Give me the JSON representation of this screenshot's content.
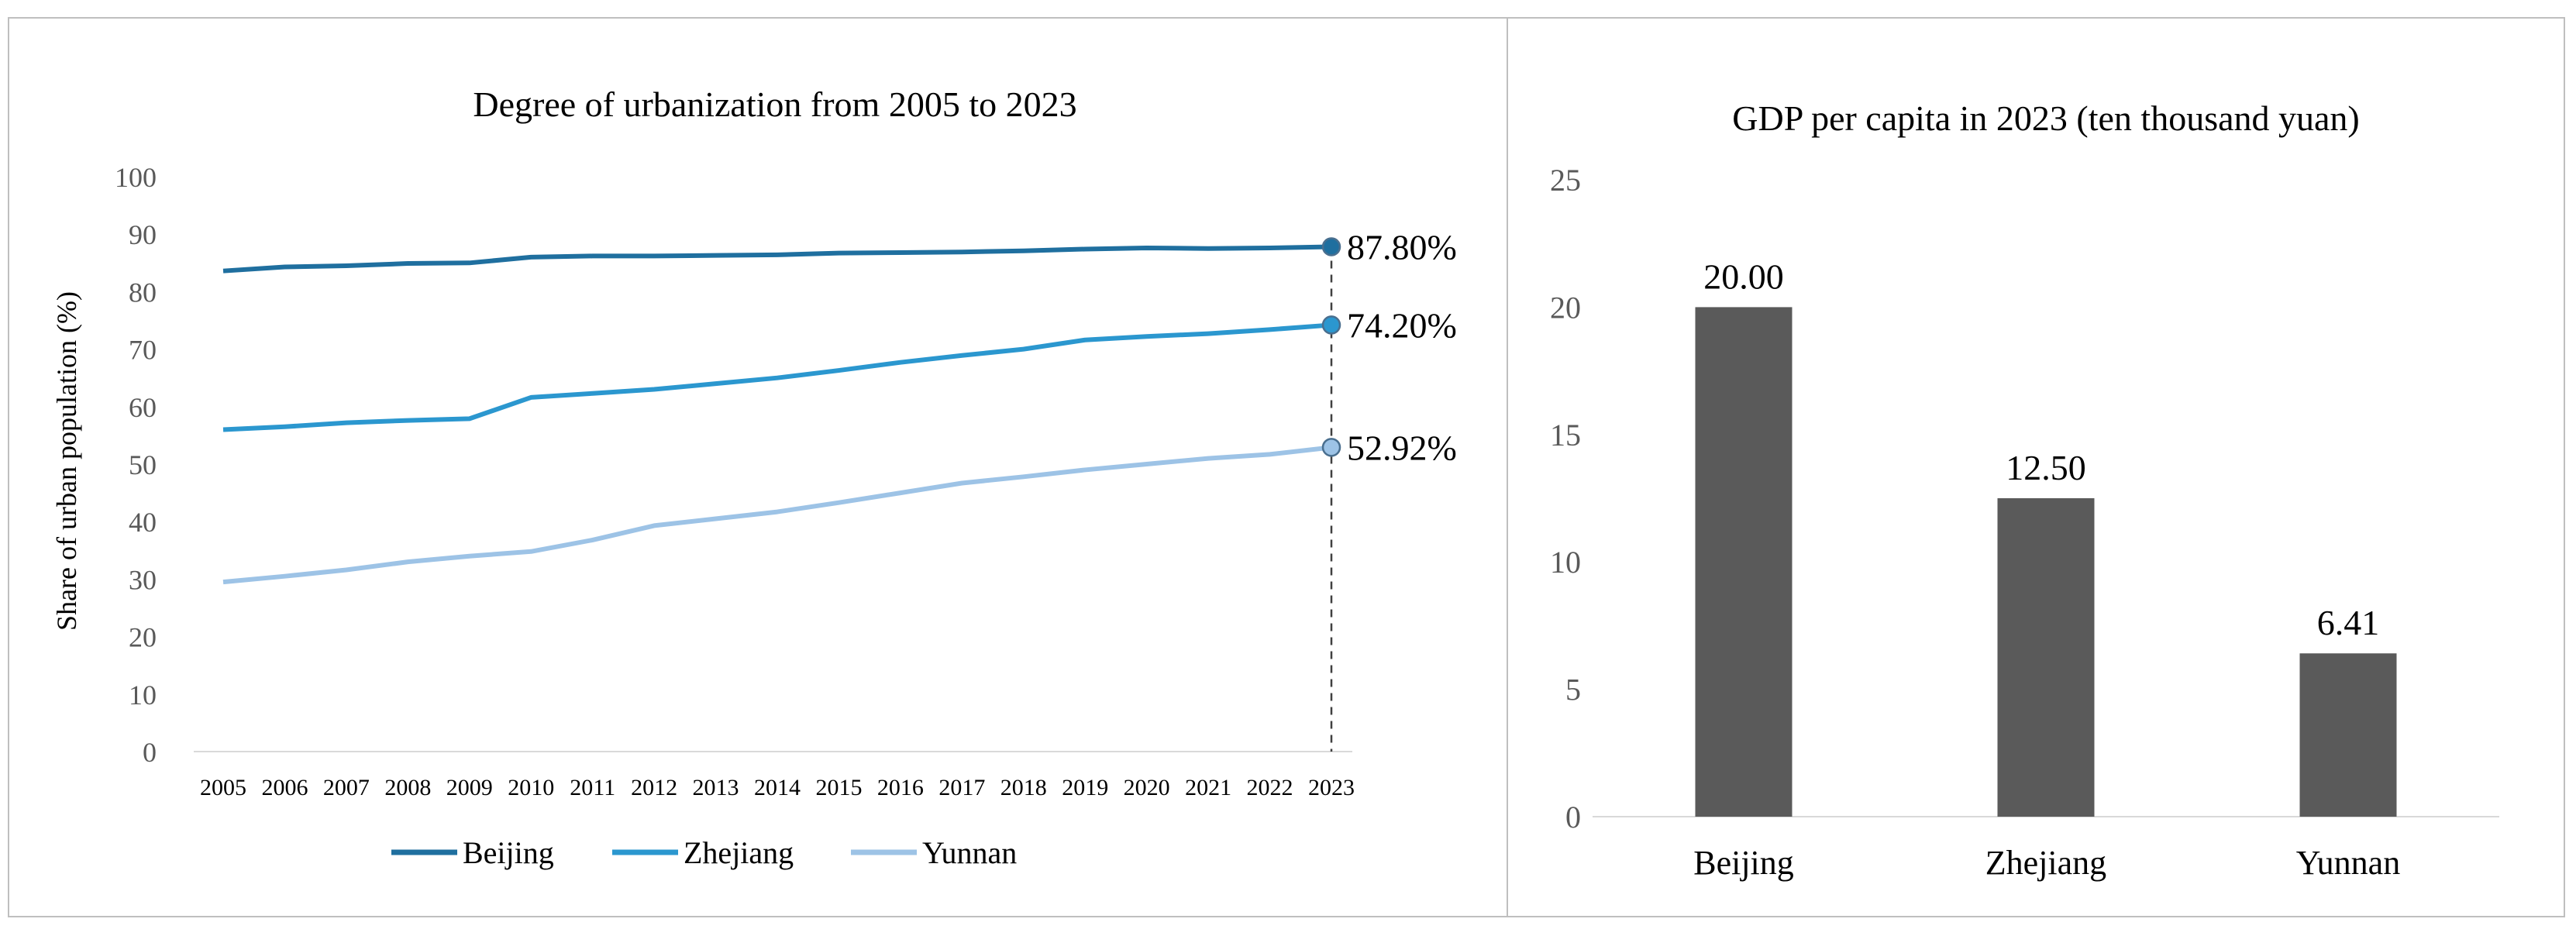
{
  "chart_data": [
    {
      "type": "line",
      "title": "Degree of urbanization from 2005 to 2023",
      "xlabel": "",
      "ylabel": "Share of urban population (%)",
      "ylim": [
        0,
        100
      ],
      "yticks": [
        0,
        10,
        20,
        30,
        40,
        50,
        60,
        70,
        80,
        90,
        100
      ],
      "x": [
        "2005",
        "2006",
        "2007",
        "2008",
        "2009",
        "2010",
        "2011",
        "2012",
        "2013",
        "2014",
        "2015",
        "2016",
        "2017",
        "2018",
        "2019",
        "2020",
        "2021",
        "2022",
        "2023"
      ],
      "series": [
        {
          "name": "Beijing",
          "color": "#1f6f9f",
          "values": [
            83.6,
            84.3,
            84.5,
            84.9,
            85.0,
            86.0,
            86.2,
            86.2,
            86.3,
            86.4,
            86.7,
            86.8,
            86.9,
            87.1,
            87.4,
            87.6,
            87.5,
            87.6,
            87.8
          ],
          "end_label": "87.80%"
        },
        {
          "name": "Zhejiang",
          "color": "#2b97cf",
          "values": [
            56.0,
            56.5,
            57.2,
            57.6,
            57.9,
            61.6,
            62.3,
            63.0,
            64.0,
            65.0,
            66.3,
            67.7,
            68.9,
            70.0,
            71.6,
            72.2,
            72.7,
            73.4,
            74.2
          ],
          "end_label": "74.20%"
        },
        {
          "name": "Yunnan",
          "color": "#9dc3e6",
          "values": [
            29.5,
            30.5,
            31.6,
            33.0,
            34.0,
            34.8,
            36.8,
            39.3,
            40.5,
            41.7,
            43.3,
            45.0,
            46.7,
            47.8,
            49.0,
            50.0,
            51.0,
            51.7,
            52.92
          ],
          "end_label": "52.92%"
        }
      ],
      "legend": "bottom"
    },
    {
      "type": "bar",
      "title": "GDP per capita in 2023 (ten thousand yuan)",
      "categories": [
        "Beijing",
        "Zhejiang",
        "Yunnan"
      ],
      "values": [
        20.0,
        12.5,
        6.41
      ],
      "value_labels": [
        "20.00",
        "12.50",
        "6.41"
      ],
      "ylim": [
        0,
        25
      ],
      "yticks": [
        0,
        5,
        10,
        15,
        20,
        25
      ],
      "bar_color": "#5a5a5a"
    }
  ]
}
